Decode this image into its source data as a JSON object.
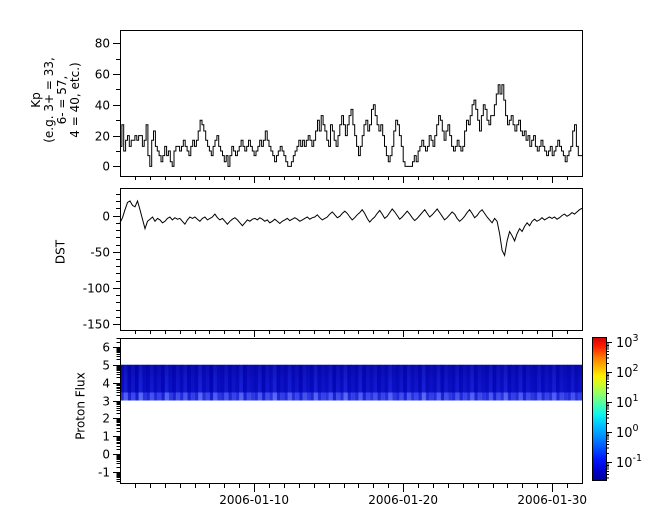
{
  "figure": {
    "background": "#ffffff",
    "axis_color": "#000000",
    "line_color": "#000000"
  },
  "xaxis": {
    "x_start": "2006-01-01",
    "x_end": "2006-02-01",
    "days_total": 31,
    "minor_day_step": 1,
    "tick_labels": [
      {
        "day": 9,
        "label": "2006-01-10"
      },
      {
        "day": 19,
        "label": "2006-01-20"
      },
      {
        "day": 29,
        "label": "2006-01-30"
      }
    ]
  },
  "chart_data": [
    {
      "type": "line",
      "style": "step",
      "name": "kp-index",
      "ylabel_lines": [
        "Kp",
        "(e.g. 3+ = 33,",
        "6- = 57,",
        "4 = 40, etc.)"
      ],
      "x_range": [
        "2006-01-01",
        "2006-02-01"
      ],
      "cadence_hours": 3,
      "ylim": [
        -6.2,
        88.5
      ],
      "yticks": [
        0,
        20,
        40,
        60,
        80
      ],
      "y_minor_step": 10,
      "values": [
        13,
        27,
        10,
        17,
        20,
        13,
        17,
        17,
        20,
        17,
        20,
        20,
        13,
        17,
        27,
        7,
        0,
        17,
        23,
        13,
        10,
        7,
        3,
        7,
        13,
        7,
        10,
        3,
        0,
        10,
        13,
        13,
        10,
        13,
        17,
        13,
        10,
        7,
        13,
        17,
        13,
        17,
        23,
        30,
        27,
        23,
        17,
        13,
        10,
        7,
        13,
        17,
        20,
        13,
        10,
        7,
        3,
        7,
        0,
        7,
        13,
        10,
        7,
        10,
        13,
        17,
        13,
        10,
        13,
        17,
        13,
        10,
        7,
        10,
        13,
        17,
        13,
        17,
        23,
        17,
        13,
        10,
        7,
        3,
        7,
        10,
        13,
        10,
        7,
        3,
        0,
        0,
        3,
        7,
        10,
        13,
        17,
        13,
        17,
        13,
        17,
        20,
        17,
        13,
        17,
        23,
        30,
        23,
        33,
        27,
        23,
        17,
        13,
        27,
        23,
        17,
        13,
        20,
        27,
        33,
        27,
        20,
        27,
        33,
        37,
        27,
        20,
        13,
        7,
        13,
        20,
        27,
        30,
        23,
        27,
        37,
        40,
        33,
        27,
        23,
        27,
        20,
        13,
        7,
        3,
        7,
        13,
        23,
        30,
        27,
        20,
        13,
        3,
        0,
        0,
        0,
        0,
        3,
        7,
        3,
        10,
        13,
        17,
        13,
        10,
        13,
        20,
        17,
        13,
        20,
        27,
        33,
        30,
        23,
        17,
        23,
        27,
        20,
        13,
        10,
        13,
        17,
        13,
        10,
        13,
        23,
        30,
        27,
        33,
        40,
        43,
        37,
        30,
        23,
        33,
        40,
        37,
        30,
        27,
        33,
        33,
        40,
        47,
        53,
        47,
        53,
        43,
        33,
        27,
        30,
        33,
        27,
        23,
        27,
        30,
        23,
        20,
        23,
        17,
        20,
        13,
        17,
        20,
        13,
        10,
        13,
        17,
        13,
        10,
        7,
        10,
        13,
        7,
        10,
        13,
        17,
        13,
        10,
        7,
        3,
        7,
        10,
        13,
        23,
        27,
        13,
        7,
        7
      ]
    },
    {
      "type": "line",
      "style": "plain",
      "name": "dst-index",
      "ylabel": "DST",
      "x_range": [
        "2006-01-01",
        "2006-02-01"
      ],
      "cadence_hours": 4,
      "ylim": [
        -158,
        38
      ],
      "yticks": [
        0,
        -50,
        -100,
        -150
      ],
      "y_minor_step": 10,
      "values": [
        -10,
        -3,
        8,
        18,
        20,
        14,
        12,
        20,
        8,
        -5,
        -18,
        -8,
        -5,
        -2,
        -8,
        -4,
        -6,
        -10,
        -8,
        -4,
        -2,
        -6,
        -3,
        -5,
        -4,
        -8,
        -12,
        -6,
        -2,
        -4,
        -2,
        -5,
        -8,
        -4,
        -2,
        -6,
        -4,
        -2,
        2,
        -3,
        -6,
        -4,
        -8,
        -12,
        -8,
        -5,
        -3,
        -6,
        -10,
        -14,
        -10,
        -6,
        -8,
        -5,
        -4,
        -6,
        -3,
        -5,
        -8,
        -6,
        -10,
        -8,
        -5,
        -8,
        -11,
        -8,
        -6,
        -4,
        -7,
        -5,
        -3,
        -5,
        -8,
        -6,
        -4,
        -2,
        -5,
        -3,
        -2,
        1,
        -3,
        -6,
        -4,
        -2,
        2,
        5,
        1,
        -3,
        -1,
        3,
        6,
        3,
        -2,
        -6,
        -3,
        1,
        4,
        8,
        3,
        -4,
        -9,
        -5,
        -2,
        3,
        7,
        2,
        -4,
        -1,
        4,
        9,
        5,
        0,
        -5,
        -2,
        2,
        6,
        2,
        -3,
        -7,
        -4,
        0,
        4,
        8,
        3,
        -2,
        1,
        5,
        9,
        4,
        -1,
        -6,
        -3,
        1,
        5,
        2,
        -4,
        -8,
        -5,
        -1,
        4,
        8,
        3,
        -3,
        0,
        5,
        8,
        3,
        -2,
        -6,
        -10,
        -4,
        -8,
        -25,
        -48,
        -55,
        -35,
        -22,
        -28,
        -35,
        -25,
        -18,
        -22,
        -15,
        -10,
        -14,
        -8,
        -5,
        -8,
        -6,
        -3,
        -6,
        -4,
        -2,
        -4,
        -2,
        -5,
        -3,
        0,
        2,
        -1,
        1,
        4,
        2,
        5,
        8,
        10
      ]
    },
    {
      "type": "heatmap",
      "name": "proton-flux-spectrogram",
      "ylabel": "Proton Flux",
      "x_range": [
        "2006-01-01",
        "2006-02-01"
      ],
      "ylim": [
        -1.62,
        6.5
      ],
      "yticks": [
        -1,
        0,
        1,
        2,
        3,
        4,
        5,
        6
      ],
      "y_scale_minor": "log",
      "band_y": [
        3,
        5
      ],
      "band_flux_level": "~1e-1 (dark blue on jet scale)",
      "band_base_color": "#0000b4",
      "band_bright_color": "#3246ff",
      "band_bottom_glow_color": "#7a8aff",
      "stripe_values": [
        0.35,
        0.8,
        0.2,
        0.6,
        0.15,
        0.9,
        0.4,
        0.25,
        0.7,
        0.3,
        0.55,
        0.18,
        0.85,
        0.45,
        0.22,
        0.65,
        0.3,
        0.75,
        0.2,
        0.5,
        0.28,
        0.9,
        0.35,
        0.6,
        0.15,
        0.8,
        0.4,
        0.3,
        0.7,
        0.25,
        0.55,
        0.35,
        0.85,
        0.2,
        0.6,
        0.45,
        0.3,
        0.75,
        0.18,
        0.65,
        0.4,
        0.9,
        0.25,
        0.5,
        0.3,
        0.8,
        0.35,
        0.6,
        0.2,
        0.7,
        0.45,
        0.25,
        0.85,
        0.3,
        0.55,
        0.4,
        0.75,
        0.2,
        0.65,
        0.35,
        0.9,
        0.28,
        0.5,
        0.3,
        0.8,
        0.22,
        0.6,
        0.4,
        0.7,
        0.25,
        0.55,
        0.33,
        0.85,
        0.45,
        0.3,
        0.65,
        0.2,
        0.75,
        0.38,
        0.6,
        0.25,
        0.9,
        0.3,
        0.5,
        0.35,
        0.8,
        0.2,
        0.68,
        0.42,
        0.3,
        0.72,
        0.26,
        0.58,
        0.36,
        0.84,
        0.24,
        0.62,
        0.44,
        0.32,
        0.76,
        0.21,
        0.66,
        0.39,
        0.88,
        0.27,
        0.52,
        0.34,
        0.78,
        0.23,
        0.63,
        0.41,
        0.3,
        0.74,
        0.29,
        0.56,
        0.37,
        0.82,
        0.26,
        0.6,
        0.43,
        0.31,
        0.7,
        0.34,
        0.5
      ]
    }
  ],
  "colorbar": {
    "scale": "log",
    "tick_labels": [
      {
        "base": "10",
        "exp": "3"
      },
      {
        "base": "10",
        "exp": "2"
      },
      {
        "base": "10",
        "exp": "1"
      },
      {
        "base": "10",
        "exp": "0"
      },
      {
        "base": "10",
        "exp": "-1"
      }
    ],
    "colormap": "jet",
    "gradient": [
      {
        "p": 0.0,
        "c": "#d40000"
      },
      {
        "p": 0.07,
        "c": "#ff2200"
      },
      {
        "p": 0.14,
        "c": "#ff7a00"
      },
      {
        "p": 0.21,
        "c": "#ffb900"
      },
      {
        "p": 0.27,
        "c": "#fdf000"
      },
      {
        "p": 0.33,
        "c": "#cdfc2c"
      },
      {
        "p": 0.4,
        "c": "#8aff6e"
      },
      {
        "p": 0.47,
        "c": "#46ffb0"
      },
      {
        "p": 0.54,
        "c": "#0cf4f0"
      },
      {
        "p": 0.61,
        "c": "#00c4ff"
      },
      {
        "p": 0.69,
        "c": "#0090ff"
      },
      {
        "p": 0.77,
        "c": "#0054ff"
      },
      {
        "p": 0.85,
        "c": "#0018ff"
      },
      {
        "p": 0.93,
        "c": "#0000cf"
      },
      {
        "p": 1.0,
        "c": "#00009c"
      }
    ]
  }
}
